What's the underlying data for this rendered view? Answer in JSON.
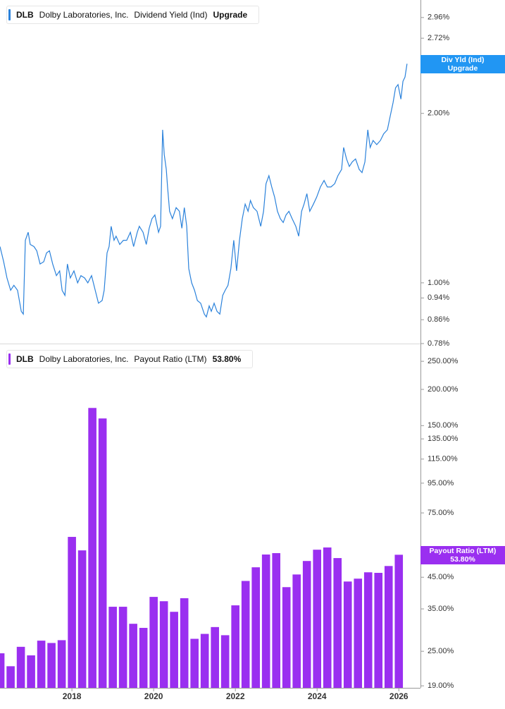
{
  "chart_data": [
    {
      "type": "line",
      "ticker": "DLB",
      "company": "Dolby Laboratories, Inc.",
      "series": [
        {
          "name": "Dividend Yield (Ind)",
          "color": "#2b82db",
          "legend_value": "Upgrade",
          "tag_name": "Div Yld (Ind)",
          "x": [
            2016.24,
            2016.33,
            2016.41,
            2016.5,
            2016.58,
            2016.67,
            2016.76,
            2016.81,
            2016.86,
            2016.93,
            2016.98,
            2017.07,
            2017.14,
            2017.22,
            2017.31,
            2017.38,
            2017.45,
            2017.53,
            2017.62,
            2017.7,
            2017.76,
            2017.83,
            2017.89,
            2017.96,
            2018.05,
            2018.14,
            2018.22,
            2018.31,
            2018.39,
            2018.48,
            2018.57,
            2018.65,
            2018.74,
            2018.79,
            2018.86,
            2018.91,
            2018.96,
            2019.03,
            2019.08,
            2019.17,
            2019.26,
            2019.34,
            2019.43,
            2019.51,
            2019.6,
            2019.65,
            2019.74,
            2019.82,
            2019.89,
            2019.96,
            2020.03,
            2020.12,
            2020.17,
            2020.22,
            2020.26,
            2020.31,
            2020.34,
            2020.39,
            2020.46,
            2020.55,
            2020.63,
            2020.69,
            2020.75,
            2020.81,
            2020.86,
            2020.93,
            2021.0,
            2021.07,
            2021.15,
            2021.24,
            2021.29,
            2021.36,
            2021.41,
            2021.48,
            2021.55,
            2021.62,
            2021.69,
            2021.75,
            2021.82,
            2021.89,
            2021.96,
            2022.03,
            2022.1,
            2022.17,
            2022.24,
            2022.31,
            2022.37,
            2022.44,
            2022.53,
            2022.62,
            2022.69,
            2022.75,
            2022.82,
            2022.89,
            2022.96,
            2023.03,
            2023.1,
            2023.17,
            2023.24,
            2023.31,
            2023.39,
            2023.48,
            2023.55,
            2023.62,
            2023.68,
            2023.75,
            2023.82,
            2023.91,
            2023.99,
            2024.08,
            2024.17,
            2024.25,
            2024.34,
            2024.43,
            2024.51,
            2024.6,
            2024.65,
            2024.72,
            2024.79,
            2024.86,
            2024.94,
            2025.03,
            2025.1,
            2025.17,
            2025.24,
            2025.3,
            2025.37,
            2025.46,
            2025.55,
            2025.63,
            2025.72,
            2025.79,
            2025.86,
            2025.92,
            2025.98,
            2026.05,
            2026.1,
            2026.15,
            2026.2
          ],
          "values": [
            1.16,
            1.09,
            1.02,
            0.97,
            0.99,
            0.97,
            0.89,
            0.88,
            1.19,
            1.23,
            1.17,
            1.16,
            1.14,
            1.08,
            1.09,
            1.13,
            1.14,
            1.08,
            1.03,
            1.05,
            0.97,
            0.95,
            1.08,
            1.02,
            1.05,
            1.0,
            1.03,
            1.02,
            1.0,
            1.03,
            0.97,
            0.92,
            0.93,
            0.97,
            1.13,
            1.16,
            1.26,
            1.19,
            1.21,
            1.17,
            1.19,
            1.19,
            1.23,
            1.16,
            1.23,
            1.26,
            1.23,
            1.17,
            1.25,
            1.3,
            1.32,
            1.23,
            1.26,
            1.87,
            1.69,
            1.59,
            1.48,
            1.34,
            1.3,
            1.36,
            1.34,
            1.25,
            1.36,
            1.26,
            1.06,
            1.0,
            0.97,
            0.93,
            0.92,
            0.88,
            0.87,
            0.91,
            0.89,
            0.92,
            0.89,
            0.88,
            0.95,
            0.97,
            0.99,
            1.06,
            1.19,
            1.05,
            1.19,
            1.3,
            1.38,
            1.34,
            1.4,
            1.36,
            1.34,
            1.26,
            1.34,
            1.5,
            1.55,
            1.48,
            1.42,
            1.34,
            1.3,
            1.28,
            1.32,
            1.34,
            1.3,
            1.26,
            1.21,
            1.34,
            1.38,
            1.44,
            1.34,
            1.38,
            1.42,
            1.48,
            1.52,
            1.48,
            1.48,
            1.5,
            1.55,
            1.59,
            1.74,
            1.66,
            1.61,
            1.64,
            1.66,
            1.59,
            1.57,
            1.64,
            1.87,
            1.74,
            1.79,
            1.76,
            1.79,
            1.84,
            1.87,
            1.98,
            2.09,
            2.22,
            2.25,
            2.12,
            2.28,
            2.32,
            2.45
          ]
        }
      ],
      "xlim": [
        2016.24,
        2026.53
      ],
      "ylim": [
        0.78,
        3.18
      ],
      "log_scale": true,
      "yticks": [
        {
          "value": 2.96,
          "label": "2.96%"
        },
        {
          "value": 2.72,
          "label": "2.72%"
        },
        {
          "value": 2.0,
          "label": "2.00%"
        },
        {
          "value": 1.0,
          "label": "1.00%"
        },
        {
          "value": 0.94,
          "label": "0.94%"
        },
        {
          "value": 0.86,
          "label": "0.86%"
        },
        {
          "value": 0.78,
          "label": "0.78%"
        }
      ]
    },
    {
      "type": "bar",
      "ticker": "DLB",
      "company": "Dolby Laboratories, Inc.",
      "series": [
        {
          "name": "Payout Ratio (LTM)",
          "color": "#9a2ff0",
          "legend_value": "53.80%",
          "tag_name": "Payout Ratio (LTM)",
          "x": [
            2016.25,
            2016.5,
            2016.75,
            2017.0,
            2017.25,
            2017.5,
            2017.75,
            2018.0,
            2018.25,
            2018.5,
            2018.75,
            2019.0,
            2019.25,
            2019.5,
            2019.75,
            2020.0,
            2020.25,
            2020.5,
            2020.75,
            2021.0,
            2021.25,
            2021.5,
            2021.75,
            2022.0,
            2022.25,
            2022.5,
            2022.75,
            2023.0,
            2023.25,
            2023.5,
            2023.75,
            2024.0,
            2024.25,
            2024.5,
            2024.75,
            2025.0,
            2025.25,
            2025.5,
            2025.75,
            2026.0
          ],
          "values": [
            24.6,
            22.2,
            25.9,
            24.2,
            27.2,
            26.7,
            27.3,
            62,
            55.7,
            172.6,
            158.8,
            35.6,
            35.6,
            31.1,
            30.1,
            38.5,
            37.2,
            34.2,
            38.1,
            27.6,
            28.7,
            30.3,
            28.4,
            36.0,
            43.7,
            48.7,
            53.9,
            54.5,
            41.6,
            46.0,
            51.2,
            56.0,
            57.0,
            52.4,
            43.5,
            44.5,
            46.8,
            46.6,
            49.2,
            53.8
          ]
        }
      ],
      "xlim": [
        2016.24,
        2026.53
      ],
      "ylim": [
        18.7,
        283
      ],
      "log_scale": true,
      "xticks": [
        2018,
        2020,
        2022,
        2024,
        2026
      ],
      "yticks": [
        {
          "value": 250,
          "label": "250.00%"
        },
        {
          "value": 200,
          "label": "200.00%"
        },
        {
          "value": 150,
          "label": "150.00%"
        },
        {
          "value": 135,
          "label": "135.00%"
        },
        {
          "value": 115,
          "label": "115.00%"
        },
        {
          "value": 95,
          "label": "95.00%"
        },
        {
          "value": 75,
          "label": "75.00%"
        },
        {
          "value": 45,
          "label": "45.00%"
        },
        {
          "value": 35,
          "label": "35.00%"
        },
        {
          "value": 25,
          "label": "25.00%"
        },
        {
          "value": 19,
          "label": "19.00%"
        }
      ]
    }
  ]
}
